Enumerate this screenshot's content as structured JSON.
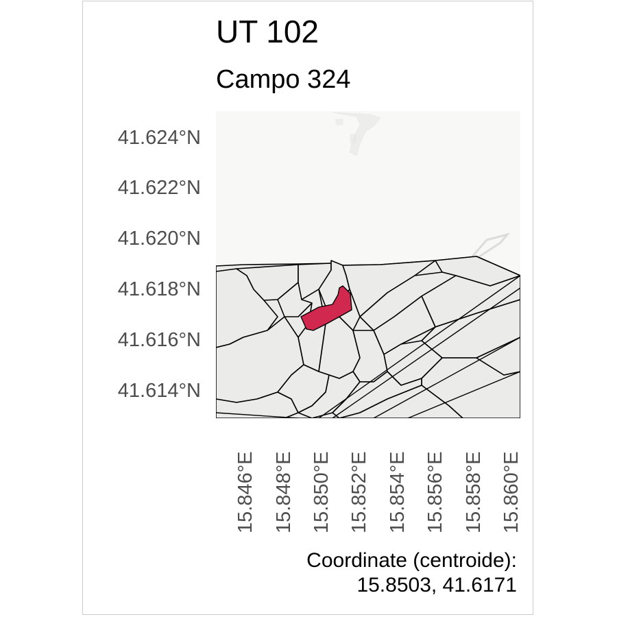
{
  "title": "UT 102",
  "subtitle": "Campo 324",
  "axes": {
    "y_ticks": [
      "41.624°N",
      "41.622°N",
      "41.620°N",
      "41.618°N",
      "41.616°N",
      "41.614°N"
    ],
    "x_ticks": [
      "15.846°E",
      "15.848°E",
      "15.850°E",
      "15.852°E",
      "15.854°E",
      "15.856°E",
      "15.858°E",
      "15.860°E"
    ]
  },
  "caption": {
    "line1": "Coordinate (centroide):",
    "line2": "15.8503, 41.6171"
  },
  "colors": {
    "highlight_fill": "#d0284f",
    "parcel_fill": "#ebebea",
    "background_fill": "#f8f8f6",
    "outline": "#000000"
  }
}
